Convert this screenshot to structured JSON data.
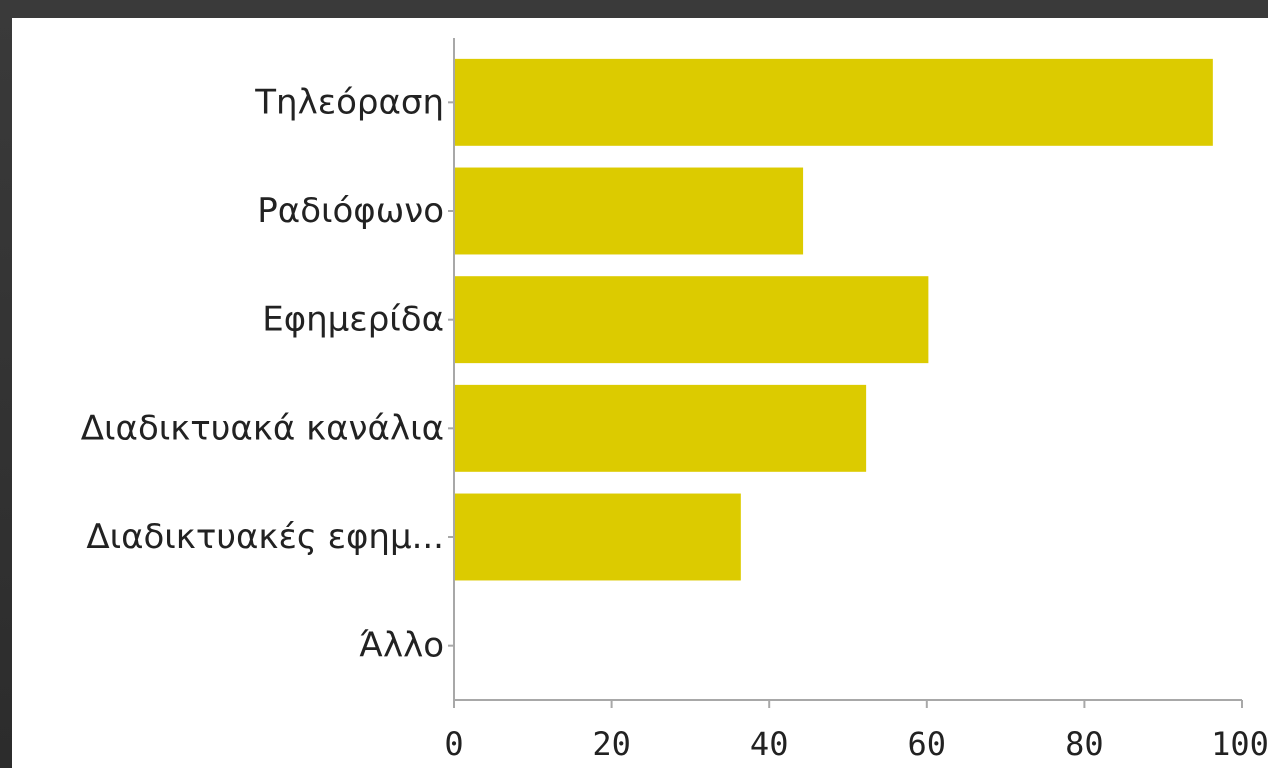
{
  "chart_data": {
    "type": "bar",
    "orientation": "horizontal",
    "categories": [
      "Τηλεόραση",
      "Ραδιόφωνο",
      "Εφημερίδα",
      "Διαδικτυακά κανάλια",
      "Διαδικτυακές εφημ...",
      "Άλλο"
    ],
    "values": [
      96.3,
      44.3,
      60.2,
      52.3,
      36.4,
      0
    ],
    "xlim": [
      0,
      100
    ],
    "xticks": [
      "0",
      "20",
      "40",
      "60",
      "80",
      "100"
    ],
    "title": "",
    "xlabel": "",
    "ylabel": "",
    "grid": false,
    "bar_color": "#dccb00"
  }
}
